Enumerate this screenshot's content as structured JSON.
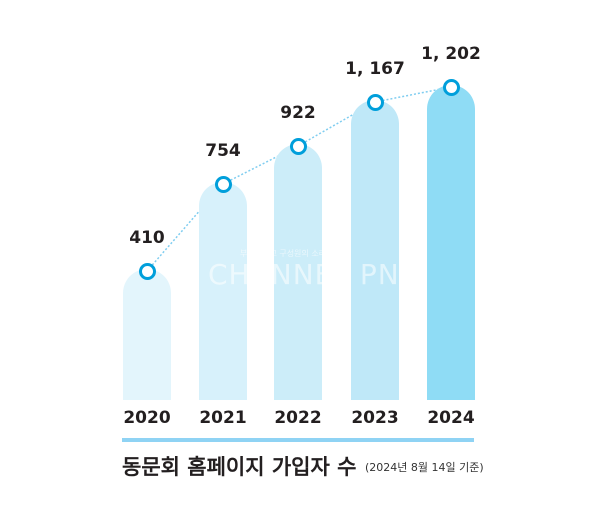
{
  "chart_data": {
    "type": "bar",
    "title": "동문회 홈페이지 가입자 수",
    "subtitle": "(2024년 8월 14일 기준)",
    "categories": [
      "2020",
      "2021",
      "2022",
      "2023",
      "2024"
    ],
    "values": [
      410,
      754,
      922,
      1167,
      1202
    ],
    "value_labels": [
      "410",
      "754",
      "922",
      "1, 167",
      "1, 202"
    ],
    "overlay": "line with circle markers (dotted)",
    "xlabel": "",
    "ylabel": "",
    "grid": false,
    "legend": "none",
    "colors": [
      "#e3f5fc",
      "#d7f1fb",
      "#ccedf9",
      "#bfe8f8",
      "#8fdcf5"
    ],
    "marker_color": "#009fdb"
  },
  "labels": {
    "title": "동문회 홈페이지 가입자 수",
    "note": "(2024년 8월 14일 기준)",
    "watermark": "CHANNEL PNU",
    "watermark_sub": "부산대학교 구성원의 소리"
  }
}
